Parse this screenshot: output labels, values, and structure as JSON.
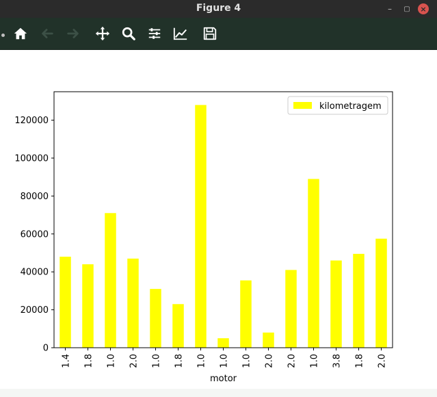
{
  "window": {
    "title": "Figure 4"
  },
  "toolbar": {
    "tools": [
      {
        "name": "home-icon",
        "label": "Home"
      },
      {
        "name": "back-arrow-icon",
        "label": "Back"
      },
      {
        "name": "forward-arrow-icon",
        "label": "Forward"
      },
      {
        "name": "pan-icon",
        "label": "Pan"
      },
      {
        "name": "zoom-icon",
        "label": "Zoom"
      },
      {
        "name": "sliders-icon",
        "label": "Subplots"
      },
      {
        "name": "line-chart-icon",
        "label": "Customize"
      },
      {
        "name": "save-icon",
        "label": "Save"
      }
    ]
  },
  "colors": {
    "bar": "#ffff00",
    "toolbar_bg": "#213229",
    "titlebar_bg": "#2b2b2b",
    "close_button": "#d9534f"
  },
  "chart_data": {
    "type": "bar",
    "title": "",
    "xlabel": "motor",
    "ylabel": "",
    "categories": [
      "1.4",
      "1.8",
      "1.0",
      "2.0",
      "1.0",
      "1.8",
      "1.0",
      "1.0",
      "1.0",
      "2.0",
      "2.0",
      "1.0",
      "3.8",
      "1.8",
      "2.0"
    ],
    "series": [
      {
        "name": "kilometragem",
        "values": [
          48000,
          44000,
          71000,
          47000,
          31000,
          23000,
          128000,
          5000,
          35500,
          8000,
          41000,
          89000,
          46000,
          49500,
          57500
        ]
      }
    ],
    "ylim": [
      0,
      135000
    ],
    "yticks": [
      0,
      20000,
      40000,
      60000,
      80000,
      100000,
      120000
    ],
    "ytick_labels": [
      "0",
      "20000",
      "40000",
      "60000",
      "80000",
      "100000",
      "120000"
    ],
    "grid": false,
    "legend": "top-right"
  }
}
